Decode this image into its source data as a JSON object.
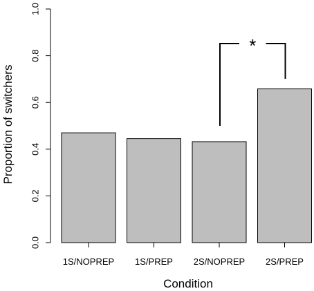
{
  "chart_data": {
    "type": "bar",
    "categories": [
      "1S/NOPREP",
      "1S/PREP",
      "2S/NOPREP",
      "2S/PREP"
    ],
    "values": [
      0.47,
      0.445,
      0.432,
      0.658
    ],
    "xlabel": "Condition",
    "ylabel": "Proportion of switchers",
    "ylim": [
      0,
      1
    ],
    "yticks": [
      "0.0",
      "0.2",
      "0.4",
      "0.6",
      "0.8",
      "1.0"
    ],
    "bar_color": "#bebebe",
    "grid": false,
    "annotations": [
      {
        "type": "significance-bracket",
        "from_category": "2S/NOPREP",
        "to_category": "2S/PREP",
        "label": "*"
      }
    ]
  }
}
